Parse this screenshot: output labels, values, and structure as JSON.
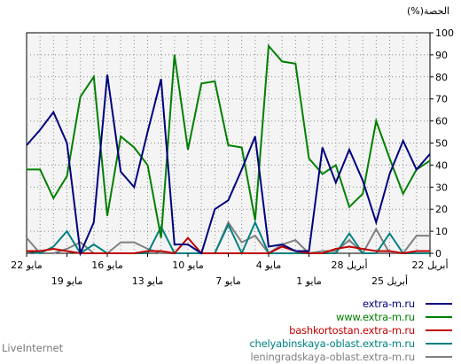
{
  "chart_data": {
    "type": "line",
    "ylabel": "(%)الحصة",
    "ylim": [
      0,
      100
    ],
    "yticks": [
      0,
      10,
      20,
      30,
      40,
      50,
      60,
      70,
      80,
      90,
      100
    ],
    "x_order": "right-to-left (most recent date on the left)",
    "xtick_labels": [
      {
        "label": "22 مايو",
        "row": 1,
        "index": 0
      },
      {
        "label": "19 مايو",
        "row": 2,
        "index": 3
      },
      {
        "label": "16 مايو",
        "row": 1,
        "index": 6
      },
      {
        "label": "13 مايو",
        "row": 2,
        "index": 9
      },
      {
        "label": "10 مايو",
        "row": 1,
        "index": 12
      },
      {
        "label": "7 مايو",
        "row": 2,
        "index": 15
      },
      {
        "label": "4 مايو",
        "row": 1,
        "index": 18
      },
      {
        "label": "1 مايو",
        "row": 2,
        "index": 21
      },
      {
        "label": "28 أبريل",
        "row": 1,
        "index": 24
      },
      {
        "label": "25 أبريل",
        "row": 2,
        "index": 27
      },
      {
        "label": "22 أبريل",
        "row": 1,
        "index": 30
      }
    ],
    "n_points": 31,
    "series": [
      {
        "name": "extra-m.ru",
        "color": "#00007f",
        "values": [
          49,
          56,
          64,
          50,
          0,
          14,
          81,
          37,
          30,
          55,
          79,
          4,
          4,
          0,
          20,
          24,
          38,
          53,
          3,
          4,
          1,
          1,
          48,
          32,
          47,
          33,
          14,
          36,
          51,
          38,
          45
        ]
      },
      {
        "name": "www.extra-m.ru",
        "color": "#008000",
        "values": [
          38,
          38,
          25,
          35,
          71,
          80,
          17,
          53,
          48,
          40,
          7,
          90,
          47,
          77,
          78,
          49,
          48,
          15,
          94,
          87,
          86,
          43,
          36,
          40,
          21,
          27,
          60,
          43,
          27,
          38,
          42
        ]
      },
      {
        "name": "bashkortostan.extra-m.ru",
        "color": "#c00000",
        "values": [
          1,
          1,
          2,
          1,
          0,
          0,
          0,
          0,
          0,
          1,
          1,
          0,
          7,
          0,
          0,
          0,
          0,
          0,
          0,
          3,
          1,
          0,
          0,
          2,
          3,
          2,
          1,
          1,
          0,
          1,
          1
        ]
      },
      {
        "name": "chelyabinskaya-oblast.extra-m.ru",
        "color": "#008080",
        "values": [
          1,
          0,
          3,
          10,
          0,
          4,
          0,
          0,
          0,
          0,
          12,
          0,
          0,
          0,
          0,
          13,
          0,
          14,
          0,
          0,
          0,
          0,
          0,
          0,
          9,
          0,
          0,
          9,
          0,
          0,
          0
        ]
      },
      {
        "name": "leningradskaya-oblast.extra-m.ru",
        "color": "#808080",
        "values": [
          7,
          0,
          0,
          2,
          5,
          0,
          0,
          5,
          5,
          2,
          0,
          0,
          0,
          0,
          0,
          14,
          5,
          8,
          0,
          4,
          6,
          0,
          1,
          1,
          6,
          0,
          11,
          0,
          0,
          8,
          8
        ]
      }
    ]
  },
  "watermark": "LiveInternet"
}
